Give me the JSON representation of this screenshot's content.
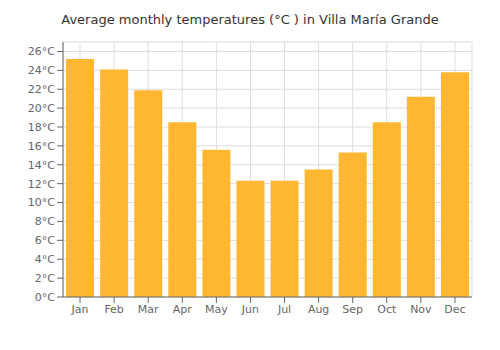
{
  "chart_data": {
    "type": "bar",
    "title": "Average monthly temperatures (°C ) in Villa María Grande",
    "categories": [
      "Jan",
      "Feb",
      "Mar",
      "Apr",
      "May",
      "Jun",
      "Jul",
      "Aug",
      "Sep",
      "Oct",
      "Nov",
      "Dec"
    ],
    "values": [
      25.2,
      24.1,
      21.9,
      18.5,
      15.6,
      12.3,
      12.3,
      13.5,
      15.3,
      18.5,
      21.2,
      23.8
    ],
    "color": "#FFB732",
    "ylim": [
      0,
      27
    ],
    "yticks": [
      {
        "value": 0,
        "label": "0°C"
      },
      {
        "value": 2,
        "label": "2°C"
      },
      {
        "value": 4,
        "label": "4°C"
      },
      {
        "value": 6,
        "label": "6°C"
      },
      {
        "value": 8,
        "label": "8°C"
      },
      {
        "value": 10,
        "label": "10°C"
      },
      {
        "value": 12,
        "label": "12°C"
      },
      {
        "value": 14,
        "label": "14°C"
      },
      {
        "value": 16,
        "label": "16°C"
      },
      {
        "value": 18,
        "label": "18°C"
      },
      {
        "value": 20,
        "label": "20°C"
      },
      {
        "value": 22,
        "label": "22°C"
      },
      {
        "value": 24,
        "label": "24°C"
      },
      {
        "value": 26,
        "label": "26°C"
      }
    ],
    "grid": true
  }
}
